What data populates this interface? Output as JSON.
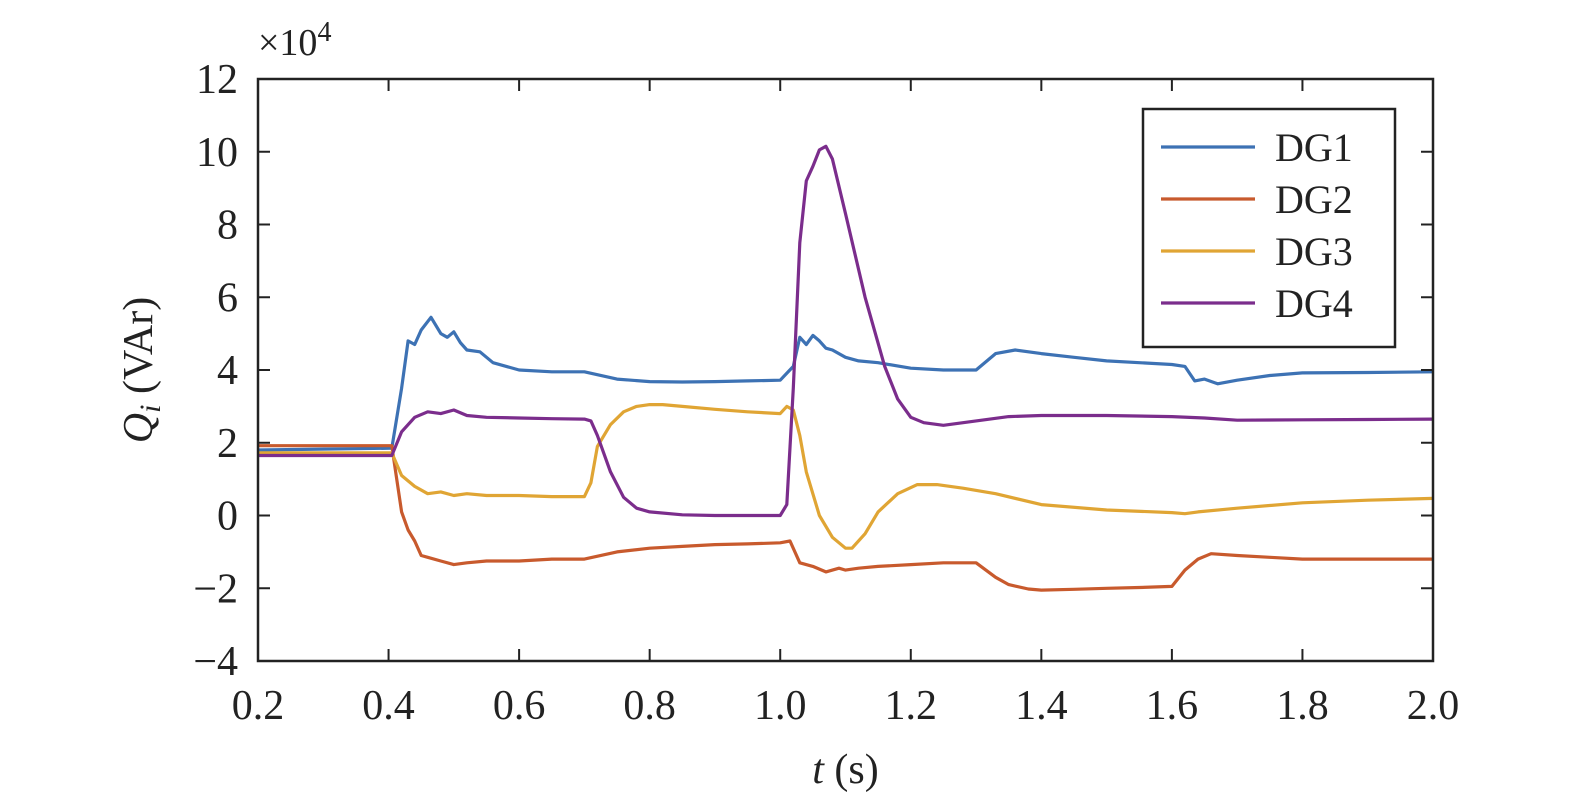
{
  "chart_data": {
    "type": "line",
    "xlabel_var": "t",
    "xlabel_unit": " (s)",
    "ylabel_var": "Q",
    "ylabel_sub": "i",
    "ylabel_unit": " (VAr)",
    "y_exponent_base": "×10",
    "y_exponent_power": "4",
    "xlim": [
      0.2,
      2.0
    ],
    "ylim": [
      -4,
      12
    ],
    "x_ticks": [
      "0.2",
      "0.4",
      "0.6",
      "0.8",
      "1.0",
      "1.2",
      "1.4",
      "1.6",
      "1.8",
      "2.0"
    ],
    "x_tick_values": [
      0.2,
      0.4,
      0.6,
      0.8,
      1.0,
      1.2,
      1.4,
      1.6,
      1.8,
      2.0
    ],
    "y_ticks": [
      "−4",
      "−2",
      "0",
      "2",
      "4",
      "6",
      "8",
      "10",
      "12"
    ],
    "y_tick_values": [
      -4,
      -2,
      0,
      2,
      4,
      6,
      8,
      10,
      12
    ],
    "grid": false,
    "legend_position": "top-right",
    "series": [
      {
        "name": "DG1",
        "color": "#3d72b4",
        "x": [
          0.2,
          0.405,
          0.42,
          0.43,
          0.44,
          0.45,
          0.465,
          0.48,
          0.49,
          0.5,
          0.51,
          0.52,
          0.54,
          0.56,
          0.6,
          0.65,
          0.7,
          0.75,
          0.8,
          0.85,
          0.9,
          0.95,
          1.0,
          1.02,
          1.03,
          1.04,
          1.05,
          1.06,
          1.07,
          1.08,
          1.1,
          1.12,
          1.15,
          1.2,
          1.25,
          1.3,
          1.33,
          1.36,
          1.4,
          1.45,
          1.5,
          1.55,
          1.6,
          1.62,
          1.635,
          1.65,
          1.67,
          1.7,
          1.75,
          1.8,
          1.9,
          2.0
        ],
        "y": [
          1.8,
          1.85,
          3.5,
          4.8,
          4.7,
          5.1,
          5.45,
          5.0,
          4.9,
          5.05,
          4.75,
          4.55,
          4.5,
          4.2,
          4.0,
          3.95,
          3.95,
          3.75,
          3.68,
          3.67,
          3.68,
          3.7,
          3.72,
          4.1,
          4.9,
          4.7,
          4.95,
          4.8,
          4.6,
          4.55,
          4.35,
          4.25,
          4.2,
          4.05,
          4.0,
          4.0,
          4.45,
          4.55,
          4.45,
          4.35,
          4.25,
          4.2,
          4.15,
          4.1,
          3.7,
          3.75,
          3.62,
          3.72,
          3.85,
          3.92,
          3.93,
          3.95
        ]
      },
      {
        "name": "DG2",
        "color": "#c85a2d",
        "x": [
          0.2,
          0.405,
          0.41,
          0.42,
          0.43,
          0.44,
          0.45,
          0.46,
          0.48,
          0.5,
          0.52,
          0.55,
          0.6,
          0.65,
          0.7,
          0.75,
          0.8,
          0.85,
          0.9,
          0.95,
          1.0,
          1.015,
          1.03,
          1.05,
          1.07,
          1.09,
          1.1,
          1.12,
          1.15,
          1.2,
          1.25,
          1.3,
          1.33,
          1.35,
          1.38,
          1.4,
          1.45,
          1.5,
          1.55,
          1.6,
          1.62,
          1.64,
          1.66,
          1.7,
          1.75,
          1.8,
          1.9,
          2.0
        ],
        "y": [
          1.92,
          1.92,
          1.3,
          0.1,
          -0.4,
          -0.7,
          -1.1,
          -1.15,
          -1.25,
          -1.35,
          -1.3,
          -1.25,
          -1.25,
          -1.2,
          -1.2,
          -1.0,
          -0.9,
          -0.85,
          -0.8,
          -0.78,
          -0.75,
          -0.7,
          -1.3,
          -1.4,
          -1.55,
          -1.45,
          -1.5,
          -1.45,
          -1.4,
          -1.35,
          -1.3,
          -1.3,
          -1.7,
          -1.9,
          -2.02,
          -2.05,
          -2.03,
          -2.0,
          -1.98,
          -1.95,
          -1.5,
          -1.2,
          -1.05,
          -1.1,
          -1.15,
          -1.2,
          -1.2,
          -1.2
        ]
      },
      {
        "name": "DG3",
        "color": "#e0a534",
        "x": [
          0.2,
          0.405,
          0.42,
          0.44,
          0.46,
          0.48,
          0.5,
          0.52,
          0.55,
          0.6,
          0.65,
          0.7,
          0.71,
          0.72,
          0.74,
          0.76,
          0.78,
          0.8,
          0.82,
          0.85,
          0.9,
          0.95,
          1.0,
          1.01,
          1.02,
          1.03,
          1.04,
          1.06,
          1.08,
          1.1,
          1.11,
          1.13,
          1.15,
          1.18,
          1.21,
          1.24,
          1.28,
          1.33,
          1.4,
          1.5,
          1.6,
          1.62,
          1.64,
          1.7,
          1.8,
          1.9,
          2.0
        ],
        "y": [
          1.72,
          1.72,
          1.1,
          0.8,
          0.6,
          0.65,
          0.55,
          0.6,
          0.55,
          0.55,
          0.52,
          0.52,
          0.9,
          1.9,
          2.5,
          2.85,
          3.0,
          3.05,
          3.05,
          3.0,
          2.92,
          2.85,
          2.8,
          3.0,
          2.9,
          2.2,
          1.2,
          0.0,
          -0.6,
          -0.9,
          -0.9,
          -0.5,
          0.1,
          0.6,
          0.85,
          0.85,
          0.75,
          0.6,
          0.3,
          0.15,
          0.08,
          0.05,
          0.1,
          0.2,
          0.35,
          0.42,
          0.47
        ]
      },
      {
        "name": "DG4",
        "color": "#7b2d8c",
        "x": [
          0.2,
          0.405,
          0.42,
          0.44,
          0.46,
          0.48,
          0.5,
          0.52,
          0.55,
          0.6,
          0.65,
          0.7,
          0.71,
          0.72,
          0.74,
          0.76,
          0.78,
          0.8,
          0.85,
          0.9,
          0.95,
          1.0,
          1.01,
          1.02,
          1.03,
          1.04,
          1.05,
          1.06,
          1.07,
          1.08,
          1.1,
          1.13,
          1.16,
          1.18,
          1.2,
          1.22,
          1.25,
          1.3,
          1.35,
          1.4,
          1.5,
          1.6,
          1.65,
          1.7,
          1.8,
          1.9,
          2.0
        ],
        "y": [
          1.65,
          1.65,
          2.3,
          2.7,
          2.85,
          2.8,
          2.9,
          2.75,
          2.7,
          2.68,
          2.66,
          2.65,
          2.6,
          2.2,
          1.2,
          0.5,
          0.2,
          0.1,
          0.02,
          0.0,
          0.0,
          0.0,
          0.3,
          3.5,
          7.5,
          9.2,
          9.6,
          10.05,
          10.15,
          9.8,
          8.3,
          6.0,
          4.1,
          3.2,
          2.7,
          2.55,
          2.48,
          2.6,
          2.72,
          2.75,
          2.75,
          2.72,
          2.68,
          2.62,
          2.63,
          2.64,
          2.65
        ]
      }
    ]
  }
}
